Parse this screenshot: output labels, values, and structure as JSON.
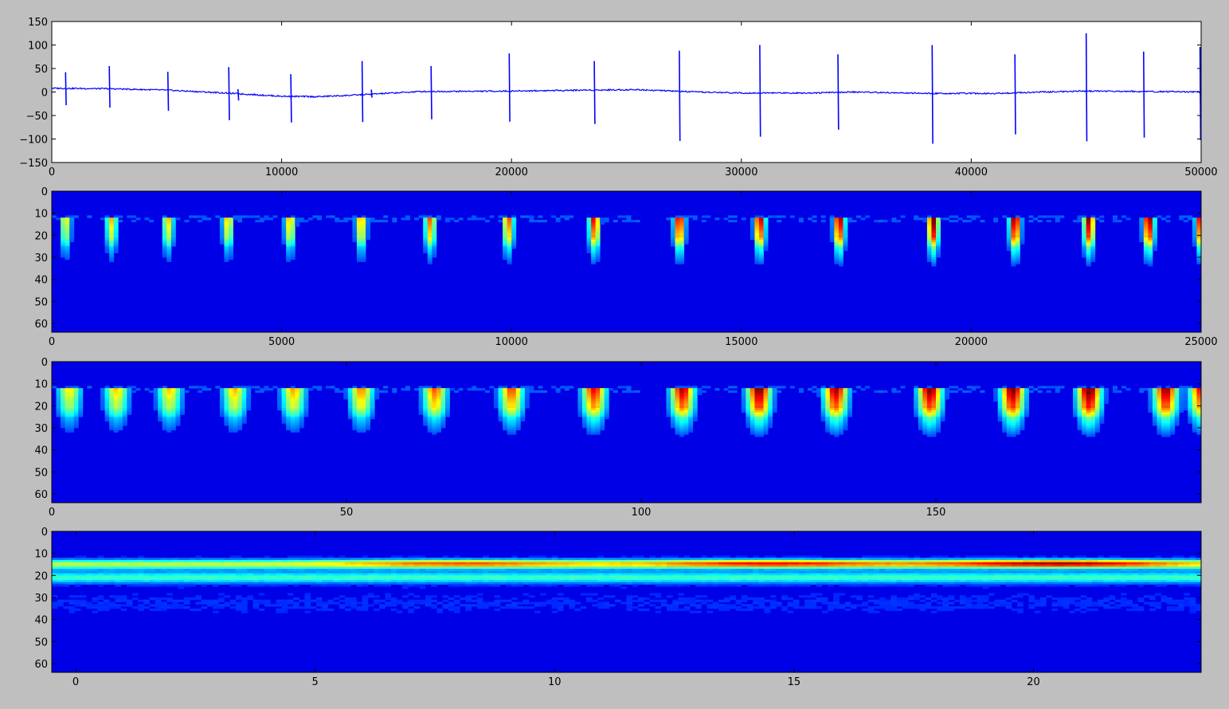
{
  "figure": {
    "background": "#bfbfbf",
    "colormap": "jet"
  },
  "chart_data": [
    {
      "type": "line",
      "title": "",
      "xlabel": "",
      "ylabel": "",
      "xlim": [
        0,
        50000
      ],
      "ylim": [
        -150,
        150
      ],
      "xticks": [
        0,
        10000,
        20000,
        30000,
        40000,
        50000
      ],
      "yticks": [
        150,
        100,
        50,
        0,
        -50,
        -100,
        -150
      ],
      "grid": false,
      "line_color": "#0000ff",
      "baseline": {
        "x": [
          0,
          2500,
          5000,
          7500,
          10000,
          11500,
          13000,
          16000,
          20000,
          23000,
          25500,
          28000,
          30000,
          33000,
          35000,
          38000,
          41000,
          43000,
          45000,
          48000,
          50000
        ],
        "y": [
          8,
          7,
          4,
          -2,
          -9,
          -10,
          -7,
          1,
          2,
          4,
          5,
          0,
          -2,
          -2,
          0,
          -3,
          -3,
          0,
          2,
          1,
          0
        ]
      },
      "spikes": [
        {
          "x": 600,
          "max": 42,
          "min": -28
        },
        {
          "x": 2500,
          "max": 55,
          "min": -33
        },
        {
          "x": 5050,
          "max": 43,
          "min": -40
        },
        {
          "x": 7700,
          "max": 53,
          "min": -60
        },
        {
          "x": 8100,
          "max": 6,
          "min": -18
        },
        {
          "x": 10400,
          "max": 38,
          "min": -65
        },
        {
          "x": 13500,
          "max": 66,
          "min": -64
        },
        {
          "x": 13900,
          "max": 5,
          "min": -12
        },
        {
          "x": 16500,
          "max": 55,
          "min": -58
        },
        {
          "x": 19900,
          "max": 82,
          "min": -63
        },
        {
          "x": 23600,
          "max": 66,
          "min": -68
        },
        {
          "x": 27300,
          "max": 88,
          "min": -104
        },
        {
          "x": 30800,
          "max": 100,
          "min": -95
        },
        {
          "x": 34200,
          "max": 80,
          "min": -80
        },
        {
          "x": 38300,
          "max": 100,
          "min": -110
        },
        {
          "x": 41900,
          "max": 80,
          "min": -90
        },
        {
          "x": 45000,
          "max": 125,
          "min": -105
        },
        {
          "x": 47500,
          "max": 86,
          "min": -97
        },
        {
          "x": 49950,
          "max": 96,
          "min": -102
        }
      ]
    },
    {
      "type": "heatmap",
      "title": "",
      "xlabel": "",
      "ylabel": "",
      "xlim": [
        0,
        25000
      ],
      "ylim": [
        64,
        0
      ],
      "xticks": [
        0,
        5000,
        10000,
        15000,
        20000,
        25000
      ],
      "yticks": [
        0,
        10,
        20,
        30,
        40,
        50,
        60
      ],
      "events_x": [
        300,
        1300,
        2530,
        3830,
        5180,
        6730,
        8230,
        9930,
        11800,
        13650,
        15400,
        17130,
        19170,
        20950,
        22560,
        23860,
        25000
      ],
      "events_peak": [
        0.55,
        0.6,
        0.6,
        0.6,
        0.62,
        0.65,
        0.7,
        0.72,
        0.82,
        0.86,
        0.88,
        0.92,
        0.97,
        0.95,
        0.92,
        0.95,
        0.9
      ],
      "band_rows": [
        12,
        30
      ]
    },
    {
      "type": "heatmap",
      "title": "",
      "xlabel": "",
      "ylabel": "",
      "xlim": [
        0,
        195
      ],
      "ylim": [
        64,
        0
      ],
      "xticks": [
        0,
        50,
        100,
        150
      ],
      "yticks": [
        0,
        10,
        20,
        30,
        40,
        50,
        60
      ],
      "events_x": [
        3,
        11,
        20,
        31,
        41,
        52.5,
        65,
        78,
        92,
        107,
        120,
        133,
        149,
        163,
        176,
        189,
        195
      ],
      "events_peak": [
        0.55,
        0.58,
        0.58,
        0.6,
        0.62,
        0.65,
        0.7,
        0.72,
        0.8,
        0.86,
        0.93,
        0.88,
        0.92,
        0.93,
        0.97,
        0.9,
        0.8
      ],
      "band_rows": [
        12,
        25
      ]
    },
    {
      "type": "heatmap",
      "title": "",
      "xlabel": "",
      "ylabel": "",
      "xlim": [
        -0.5,
        23.5
      ],
      "ylim": [
        64,
        0
      ],
      "xticks": [
        0,
        5,
        10,
        15,
        20
      ],
      "yticks": [
        0,
        10,
        20,
        30,
        40,
        50,
        60
      ],
      "band_upper_row": 14.5,
      "band_lower_row": 20.5,
      "hotspots": [
        {
          "x": 8,
          "row": 14,
          "value": 0.8
        },
        {
          "x": 14.5,
          "row": 14,
          "value": 0.88
        },
        {
          "x": 20.5,
          "row": 14,
          "value": 0.97
        }
      ]
    }
  ]
}
